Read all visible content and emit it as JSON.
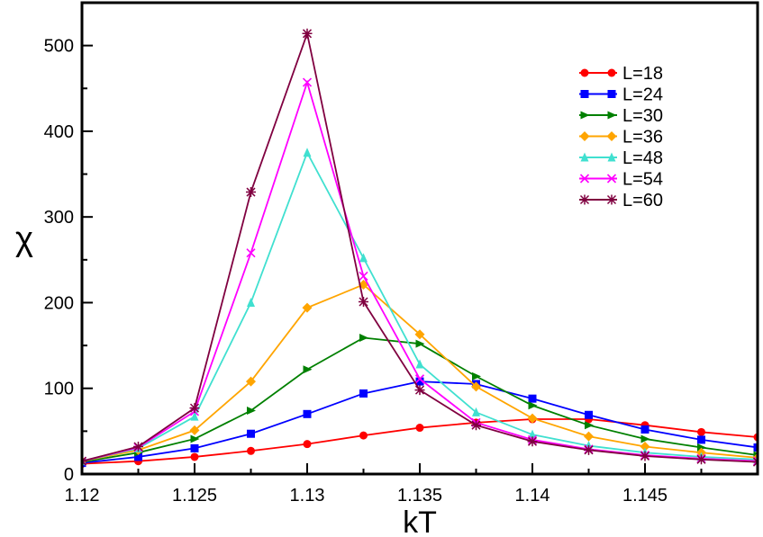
{
  "chart_data": {
    "type": "line",
    "xlabel": "kT",
    "ylabel": "χ",
    "xlim": [
      1.12,
      1.15
    ],
    "ylim": [
      0,
      550
    ],
    "xticks": [
      1.12,
      1.125,
      1.13,
      1.135,
      1.14,
      1.145
    ],
    "xtick_labels": [
      "1.12",
      "1.125",
      "1.13",
      "1.135",
      "1.14",
      "1.145"
    ],
    "yticks": [
      0,
      100,
      200,
      300,
      400,
      500
    ],
    "ytick_labels": [
      "0",
      "100",
      "200",
      "300",
      "400",
      "500"
    ],
    "grid": false,
    "legend_position": "top-right",
    "x": [
      1.12,
      1.1225,
      1.125,
      1.1275,
      1.13,
      1.1325,
      1.135,
      1.1375,
      1.14,
      1.1425,
      1.145,
      1.1475,
      1.15
    ],
    "series": [
      {
        "name": "L=18",
        "color": "#ff0000",
        "marker": "circle",
        "values": [
          12,
          15,
          20,
          27,
          35,
          45,
          54,
          60,
          64,
          64,
          57,
          49,
          43
        ]
      },
      {
        "name": "L=24",
        "color": "#0000ff",
        "marker": "square",
        "values": [
          13,
          20,
          30,
          47,
          70,
          94,
          108,
          105,
          88,
          69,
          52,
          40,
          31
        ]
      },
      {
        "name": "L=30",
        "color": "#008000",
        "marker": "triangle-right",
        "values": [
          14,
          25,
          41,
          74,
          122,
          159,
          152,
          114,
          80,
          57,
          41,
          31,
          22
        ]
      },
      {
        "name": "L=36",
        "color": "#ffa500",
        "marker": "diamond",
        "values": [
          15,
          28,
          51,
          108,
          194,
          221,
          163,
          102,
          65,
          44,
          32,
          25,
          19
        ]
      },
      {
        "name": "L=48",
        "color": "#40e0d0",
        "marker": "triangle-up",
        "values": [
          15,
          30,
          67,
          200,
          375,
          252,
          128,
          72,
          46,
          33,
          25,
          20,
          17
        ]
      },
      {
        "name": "L=54",
        "color": "#ff00ff",
        "marker": "x",
        "values": [
          15,
          31,
          73,
          258,
          457,
          231,
          111,
          60,
          40,
          29,
          22,
          18,
          15
        ]
      },
      {
        "name": "L=60",
        "color": "#800040",
        "marker": "star",
        "values": [
          15,
          32,
          77,
          329,
          514,
          201,
          98,
          57,
          38,
          28,
          21,
          17,
          14
        ]
      }
    ]
  }
}
